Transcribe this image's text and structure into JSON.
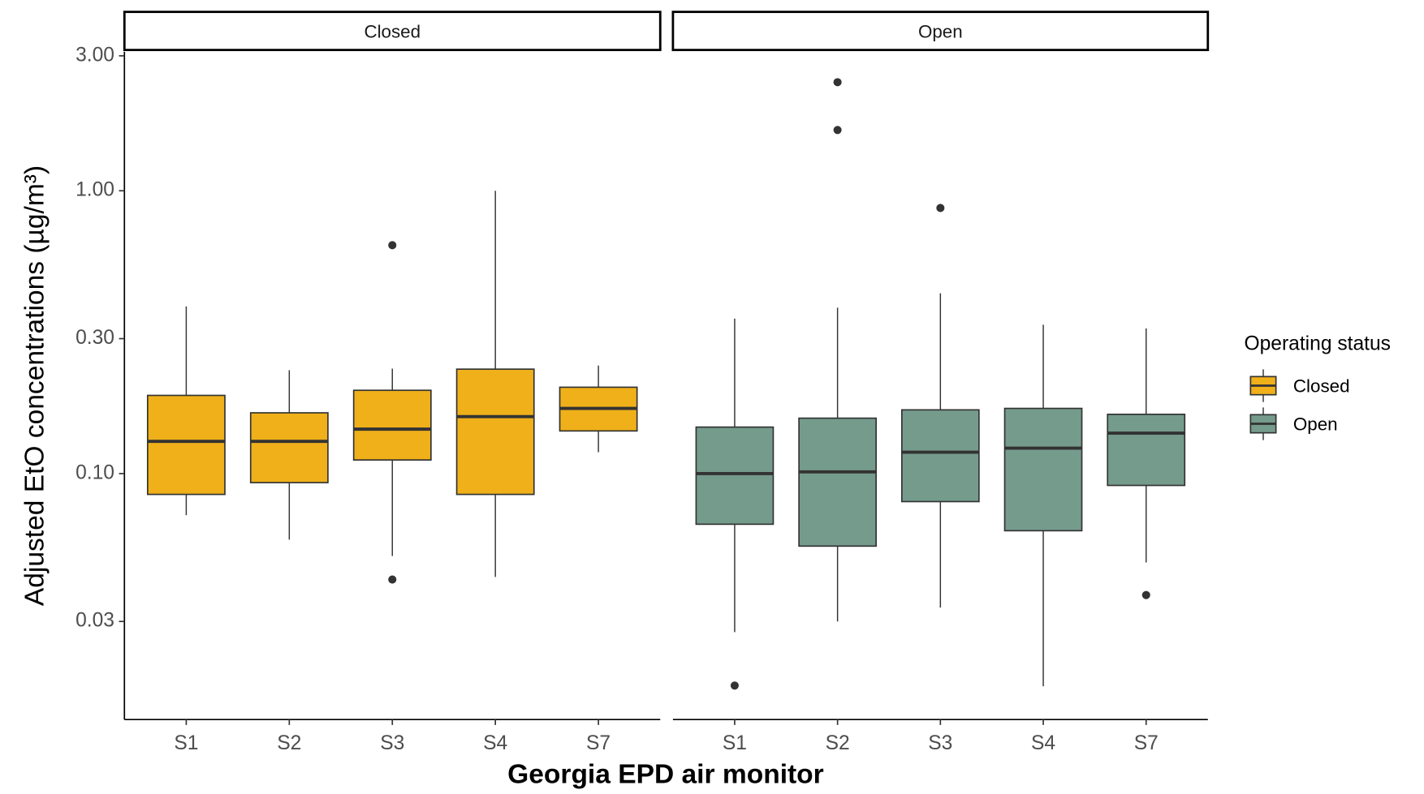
{
  "chart_data": {
    "type": "boxplot",
    "x_label": "Georgia EPD air monitor",
    "y_label": "Adjusted EtO concentrations (µg/m³)",
    "legend_title": "Operating status",
    "log_y": true,
    "ylim": [
      0.0135,
      3.1
    ],
    "yticks": [
      {
        "value": 0.03,
        "label": "0.03"
      },
      {
        "value": 0.1,
        "label": "0.10"
      },
      {
        "value": 0.3,
        "label": "0.30"
      },
      {
        "value": 1,
        "label": "1.00"
      },
      {
        "value": 3,
        "label": "3.00"
      }
    ],
    "series": [
      {
        "name": "Closed",
        "color": "#EFB01A",
        "categories": [
          "S1",
          "S2",
          "S3",
          "S4",
          "S7"
        ],
        "whisker_low": [
          0.0713,
          0.0584,
          0.0511,
          0.0431,
          0.119
        ],
        "q1": [
          0.0844,
          0.0929,
          0.1117,
          0.0844,
          0.1415
        ],
        "median": [
          0.13,
          0.13,
          0.1436,
          0.159,
          0.17
        ],
        "q3": [
          0.189,
          0.164,
          0.197,
          0.234,
          0.202
        ],
        "whisker_high": [
          0.39,
          0.232,
          0.235,
          1.0,
          0.241
        ],
        "outliers": [
          [],
          [],
          [
            0.642,
            0.0422
          ],
          [],
          []
        ]
      },
      {
        "name": "Open",
        "color": "#759B8D",
        "categories": [
          "S1",
          "S2",
          "S3",
          "S4",
          "S7"
        ],
        "whisker_low": [
          0.0275,
          0.03,
          0.0336,
          0.0177,
          0.0485
        ],
        "q1": [
          0.0662,
          0.0554,
          0.0796,
          0.0628,
          0.0908
        ],
        "median": [
          0.1,
          0.1014,
          0.119,
          0.123,
          0.139
        ],
        "q3": [
          0.146,
          0.157,
          0.168,
          0.17,
          0.162
        ],
        "whisker_high": [
          0.353,
          0.386,
          0.434,
          0.336,
          0.326
        ],
        "outliers": [
          [
            0.0178
          ],
          [
            2.42,
            1.64
          ],
          [
            0.869
          ],
          [],
          [
            0.0372
          ]
        ]
      }
    ]
  }
}
